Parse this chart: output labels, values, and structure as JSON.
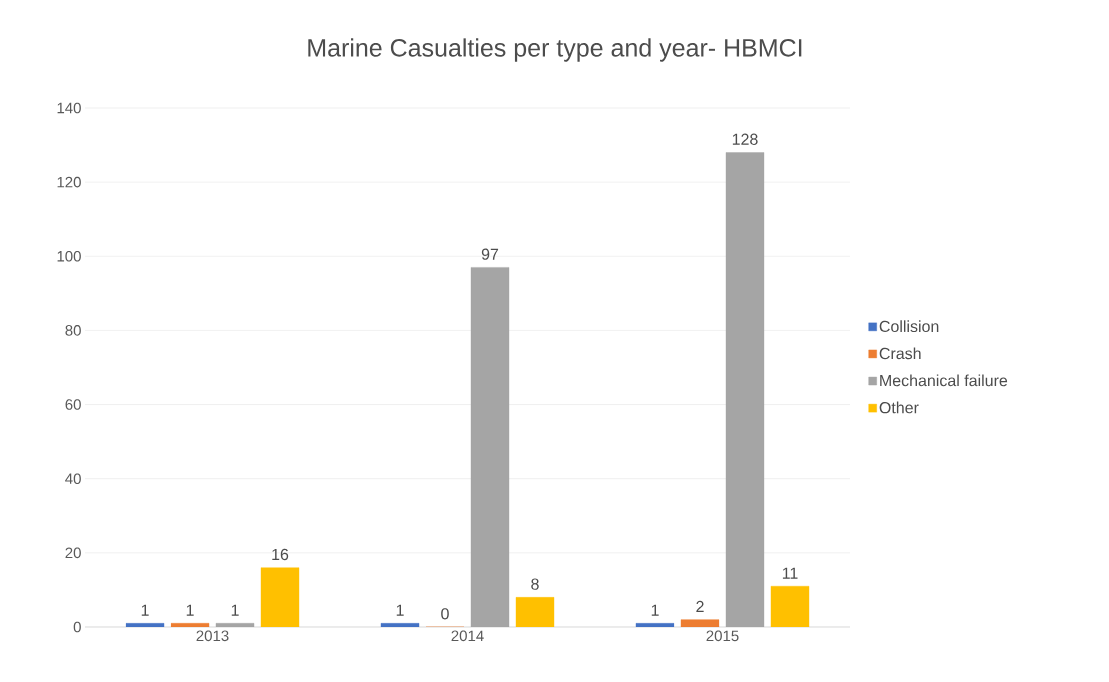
{
  "chart_data": {
    "type": "bar",
    "title": "Marine Casualties per type and year- HBMCI",
    "categories": [
      "2013",
      "2014",
      "2015"
    ],
    "series": [
      {
        "name": "Collision",
        "color": "#4472c4",
        "values": [
          1,
          1,
          1
        ]
      },
      {
        "name": "Crash",
        "color": "#ed7d31",
        "values": [
          1,
          0,
          2
        ]
      },
      {
        "name": "Mechanical failure",
        "color": "#a5a5a5",
        "values": [
          1,
          97,
          128
        ]
      },
      {
        "name": "Other",
        "color": "#ffc000",
        "values": [
          16,
          8,
          11
        ]
      }
    ],
    "ylim": [
      0,
      140
    ],
    "yticks": [
      0,
      20,
      40,
      60,
      80,
      100,
      120,
      140
    ],
    "grid": "y",
    "legend": "right",
    "data_labels": true
  }
}
